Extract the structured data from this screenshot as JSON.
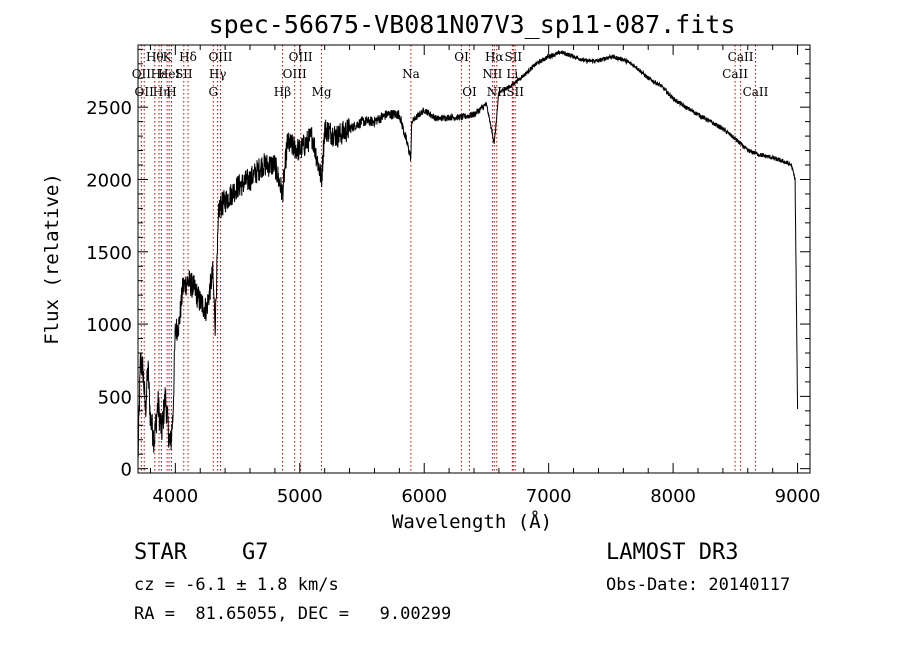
{
  "chart_data": {
    "type": "line",
    "title": "spec-56675-VB081N07V3_sp11-087.fits",
    "xlabel": "Wavelength (Å)",
    "ylabel": "Flux (relative)",
    "xlim": [
      3700,
      9100
    ],
    "ylim": [
      -30,
      2930
    ],
    "xticks": [
      4000,
      5000,
      6000,
      7000,
      8000,
      9000
    ],
    "yticks": [
      0,
      500,
      1000,
      1500,
      2000,
      2500
    ],
    "grid": false,
    "spectrum_anchors": {
      "x": [
        3700,
        3720,
        3740,
        3760,
        3780,
        3800,
        3830,
        3860,
        3890,
        3920,
        3940,
        3960,
        3980,
        4000,
        4030,
        4060,
        4100,
        4150,
        4200,
        4250,
        4300,
        4320,
        4350,
        4400,
        4500,
        4600,
        4700,
        4800,
        4861,
        4900,
        5000,
        5100,
        5175,
        5200,
        5300,
        5400,
        5500,
        5600,
        5700,
        5800,
        5893,
        5900,
        6000,
        6100,
        6200,
        6300,
        6400,
        6500,
        6563,
        6600,
        6700,
        6800,
        6900,
        7000,
        7100,
        7200,
        7300,
        7400,
        7500,
        7600,
        7700,
        7800,
        7900,
        8000,
        8100,
        8200,
        8300,
        8400,
        8500,
        8600,
        8700,
        8800,
        8900,
        8950,
        8980,
        9000
      ],
      "y": [
        50,
        750,
        680,
        400,
        700,
        350,
        200,
        450,
        250,
        500,
        300,
        150,
        350,
        950,
        1000,
        1250,
        1300,
        1250,
        1150,
        1100,
        1350,
        1000,
        1800,
        1850,
        1950,
        2000,
        2100,
        2100,
        1900,
        2250,
        2200,
        2300,
        2000,
        2350,
        2300,
        2350,
        2400,
        2400,
        2450,
        2450,
        2150,
        2400,
        2480,
        2420,
        2430,
        2430,
        2450,
        2520,
        2250,
        2600,
        2650,
        2720,
        2800,
        2850,
        2880,
        2850,
        2820,
        2820,
        2850,
        2830,
        2780,
        2700,
        2650,
        2560,
        2500,
        2450,
        2400,
        2350,
        2280,
        2200,
        2170,
        2150,
        2120,
        2100,
        2000,
        400
      ]
    },
    "lines": [
      {
        "wave": 3727,
        "label": "OII",
        "row": 2
      },
      {
        "wave": 3750,
        "label": "OII",
        "row": 3
      },
      {
        "wave": 3835,
        "label": "Hθ",
        "row": 1
      },
      {
        "wave": 3869,
        "label": "Hε",
        "row": 2
      },
      {
        "wave": 3889,
        "label": "Hη",
        "row": 3
      },
      {
        "wave": 3934,
        "label": "K",
        "row": 1
      },
      {
        "wave": 3950,
        "label": "HeI",
        "row": 2
      },
      {
        "wave": 3969,
        "label": "H",
        "row": 3
      },
      {
        "wave": 4068,
        "label": "SII",
        "row": 2
      },
      {
        "wave": 4102,
        "label": "Hδ",
        "row": 1
      },
      {
        "wave": 4305,
        "label": "G",
        "row": 3
      },
      {
        "wave": 4340,
        "label": "Hγ",
        "row": 2
      },
      {
        "wave": 4363,
        "label": "OIII",
        "row": 1
      },
      {
        "wave": 4861,
        "label": "Hβ",
        "row": 3
      },
      {
        "wave": 4959,
        "label": "OIII",
        "row": 2
      },
      {
        "wave": 5007,
        "label": "OIII",
        "row": 1
      },
      {
        "wave": 5175,
        "label": "Mg",
        "row": 3
      },
      {
        "wave": 5893,
        "label": "Na",
        "row": 2
      },
      {
        "wave": 6300,
        "label": "OI",
        "row": 1
      },
      {
        "wave": 6364,
        "label": "OI",
        "row": 3
      },
      {
        "wave": 6548,
        "label": "NII",
        "row": 2
      },
      {
        "wave": 6563,
        "label": "Hα",
        "row": 1
      },
      {
        "wave": 6583,
        "label": "NII",
        "row": 3
      },
      {
        "wave": 6708,
        "label": "Li",
        "row": 2
      },
      {
        "wave": 6716,
        "label": "SII",
        "row": 1
      },
      {
        "wave": 6731,
        "label": "SII",
        "row": 3
      },
      {
        "wave": 8498,
        "label": "CaII",
        "row": 2
      },
      {
        "wave": 8542,
        "label": "CaII",
        "row": 1
      },
      {
        "wave": 8662,
        "label": "CaII",
        "row": 3
      }
    ]
  },
  "info": {
    "object_class": "STAR",
    "subclass": "G7",
    "survey": "LAMOST DR3",
    "cz": "cz = -6.1 ± 1.8 km/s",
    "obs_date": "Obs-Date: 20140117",
    "coords": "RA =  81.65055, DEC =   9.00299"
  }
}
